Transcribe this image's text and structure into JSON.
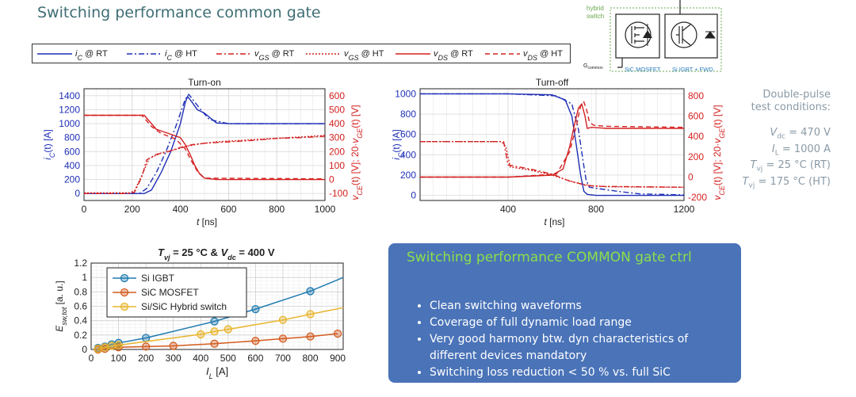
{
  "page": {
    "title": "Switching performance common gate",
    "conditions": {
      "heading": [
        "Double-pulse",
        "test conditions:"
      ],
      "lines": [
        {
          "sym": "V",
          "sub": "dc",
          "val": " = 470 V"
        },
        {
          "sym": "I",
          "sub": "L",
          "val": " = 1000 A"
        },
        {
          "sym": "T",
          "sub": "vj",
          "val": " = 25 °C (RT)"
        },
        {
          "sym": "T",
          "sub": "vj",
          "val": " = 175 °C (HT)"
        }
      ]
    },
    "callout": {
      "heading": "Switching performance COMMON gate ctrl",
      "bullets": [
        "Clean switching waveforms",
        "Coverage of full dynamic load range",
        "Very good harmony btw. dyn characteristics of different devices mandatory",
        "Switching loss reduction < 50 % vs. full SiC"
      ]
    },
    "circuit": {
      "label_hybrid": "hybrid",
      "label_switch": "switch",
      "label_gate": "G",
      "label_gate_sub": "common",
      "label_mosfet": "SiC MOSFET",
      "label_igbt": "Si IGBT + FWD"
    },
    "top_legend": [
      {
        "name": "iC @ RT",
        "sym": "i",
        "sub": "C",
        "suffix": " @ RT",
        "color": "#1f2fb5",
        "dash": ""
      },
      {
        "name": "iC @ HT",
        "sym": "i",
        "sub": "C",
        "suffix": " @ HT",
        "color": "#1f2fb5",
        "dash": "7,3,2,3"
      },
      {
        "name": "vGS @ RT",
        "sym": "v",
        "sub": "GS",
        "suffix": " @ RT",
        "color": "#d42020",
        "dash": "7,3,2,3"
      },
      {
        "name": "vGS @ HT",
        "sym": "v",
        "sub": "GS",
        "suffix": " @ HT",
        "color": "#d42020",
        "dash": "2,2"
      },
      {
        "name": "vDS @ RT",
        "sym": "v",
        "sub": "DS",
        "suffix": " @ RT",
        "color": "#d42020",
        "dash": ""
      },
      {
        "name": "vDS @ HT",
        "sym": "v",
        "sub": "DS",
        "suffix": " @ HT",
        "color": "#d42020",
        "dash": "6,4"
      }
    ]
  },
  "chart_data": [
    {
      "type": "line",
      "title": "Turn-on",
      "xlabel": "t [ns]",
      "ylabel_left": "iC(t) [A]",
      "ylabel_right": "vCE(t) [V]; 20·vGE(t) [V]",
      "xlim": [
        0,
        1000
      ],
      "xticks": [
        0,
        200,
        400,
        600,
        800,
        1000
      ],
      "ylim_left": [
        -100,
        1500
      ],
      "yticks_left": [
        0,
        200,
        400,
        600,
        800,
        1000,
        1200,
        1400
      ],
      "ylim_right": [
        -150,
        650
      ],
      "yticks_right": [
        -100,
        0,
        100,
        200,
        300,
        400,
        500,
        600
      ],
      "grid": true,
      "series": [
        {
          "name": "iC @ RT",
          "axis": "left",
          "color": "#1f2fb5",
          "dash": "",
          "x": [
            0,
            250,
            280,
            320,
            360,
            400,
            420,
            430,
            450,
            470,
            500,
            550,
            600,
            1000
          ],
          "y": [
            0,
            0,
            50,
            300,
            600,
            1000,
            1300,
            1390,
            1300,
            1200,
            1150,
            1010,
            1000,
            1000
          ]
        },
        {
          "name": "iC @ HT",
          "axis": "left",
          "color": "#1f2fb5",
          "dash": "7,3,2,3",
          "x": [
            0,
            230,
            260,
            300,
            340,
            380,
            420,
            435,
            455,
            480,
            520,
            600,
            1000
          ],
          "y": [
            0,
            0,
            70,
            300,
            600,
            950,
            1350,
            1420,
            1330,
            1220,
            1060,
            1000,
            1000
          ]
        },
        {
          "name": "vDS @ RT",
          "axis": "right",
          "color": "#d42020",
          "dash": "",
          "x": [
            0,
            250,
            300,
            350,
            400,
            420,
            440,
            460,
            480,
            500,
            550,
            1000
          ],
          "y": [
            460,
            460,
            360,
            330,
            300,
            250,
            180,
            100,
            40,
            10,
            0,
            0
          ]
        },
        {
          "name": "vDS @ HT",
          "axis": "right",
          "color": "#d42020",
          "dash": "6,4",
          "x": [
            0,
            240,
            280,
            320,
            380,
            420,
            440,
            470,
            500,
            1000
          ],
          "y": [
            460,
            460,
            380,
            330,
            290,
            220,
            150,
            60,
            10,
            5
          ]
        },
        {
          "name": "vGS @ RT",
          "axis": "right",
          "color": "#d42020",
          "dash": "7,3,2,3",
          "x": [
            0,
            190,
            210,
            240,
            260,
            300,
            350,
            400,
            450,
            500,
            600,
            700,
            800,
            900,
            1000
          ],
          "y": [
            -100,
            -100,
            -90,
            20,
            140,
            180,
            200,
            230,
            250,
            260,
            270,
            280,
            295,
            300,
            310
          ]
        },
        {
          "name": "vGS @ HT",
          "axis": "right",
          "color": "#d42020",
          "dash": "2,2",
          "x": [
            0,
            190,
            210,
            240,
            270,
            320,
            380,
            430,
            480,
            550,
            650,
            750,
            850,
            1000
          ],
          "y": [
            -95,
            -95,
            -80,
            30,
            150,
            190,
            215,
            240,
            255,
            270,
            280,
            290,
            300,
            315
          ]
        }
      ]
    },
    {
      "type": "line",
      "title": "Turn-off",
      "xlabel": "t [ns]",
      "ylabel_left": "iC(t) [A]",
      "ylabel_right": "vCE(t) [V]; 20·vGE(t) [V]",
      "xlim": [
        0,
        1200
      ],
      "xticks": [
        400,
        800,
        1200
      ],
      "ylim_left": [
        -50,
        1050
      ],
      "yticks_left": [
        0,
        200,
        400,
        600,
        800,
        1000
      ],
      "ylim_right": [
        -230,
        870
      ],
      "yticks_right": [
        -200,
        0,
        200,
        400,
        600,
        800
      ],
      "grid": true,
      "series": [
        {
          "name": "iC @ RT",
          "axis": "left",
          "color": "#1f2fb5",
          "dash": "",
          "x": [
            0,
            400,
            600,
            660,
            690,
            710,
            730,
            745,
            760,
            800,
            1200
          ],
          "y": [
            1000,
            1000,
            990,
            940,
            780,
            500,
            200,
            40,
            10,
            0,
            0
          ]
        },
        {
          "name": "iC @ HT",
          "axis": "left",
          "color": "#1f2fb5",
          "dash": "7,3,2,3",
          "x": [
            0,
            400,
            620,
            690,
            720,
            740,
            755,
            770,
            800,
            900,
            1000,
            1200
          ],
          "y": [
            1000,
            1000,
            980,
            900,
            650,
            350,
            150,
            80,
            70,
            40,
            15,
            5
          ]
        },
        {
          "name": "vDS @ RT",
          "axis": "right",
          "color": "#d42020",
          "dash": "",
          "x": [
            0,
            400,
            600,
            650,
            680,
            700,
            720,
            735,
            750,
            760,
            780,
            850,
            1200
          ],
          "y": [
            0,
            0,
            20,
            80,
            300,
            500,
            680,
            720,
            600,
            480,
            490,
            480,
            480
          ]
        },
        {
          "name": "vDS @ HT",
          "axis": "right",
          "color": "#d42020",
          "dash": "6,4",
          "x": [
            0,
            400,
            620,
            680,
            710,
            730,
            745,
            760,
            770,
            790,
            850,
            1200
          ],
          "y": [
            0,
            0,
            30,
            250,
            500,
            700,
            740,
            640,
            540,
            510,
            500,
            490
          ]
        },
        {
          "name": "vGS @ RT",
          "axis": "right",
          "color": "#d42020",
          "dash": "7,3,2,3",
          "x": [
            0,
            360,
            380,
            400,
            500,
            600,
            680,
            720,
            750,
            800,
            1200
          ],
          "y": [
            350,
            350,
            350,
            120,
            80,
            30,
            -40,
            -60,
            -80,
            -90,
            -100
          ]
        },
        {
          "name": "vGS @ HT",
          "axis": "right",
          "color": "#d42020",
          "dash": "2,2",
          "x": [
            0,
            370,
            390,
            410,
            500,
            600,
            700,
            740,
            780,
            850,
            1200
          ],
          "y": [
            350,
            350,
            300,
            100,
            70,
            20,
            -50,
            -70,
            -85,
            -95,
            -100
          ]
        }
      ]
    },
    {
      "type": "line",
      "title": "Tvj = 25 °C & Vdc = 400 V",
      "xlabel": "IL [A]",
      "ylabel": "Esw,tot [a. u.]",
      "xlim": [
        0,
        920
      ],
      "xticks": [
        0,
        100,
        200,
        300,
        400,
        500,
        600,
        700,
        800,
        900
      ],
      "ylim": [
        0,
        1.2
      ],
      "yticks": [
        0,
        0.2,
        0.4,
        0.6,
        0.8,
        1,
        1.2
      ],
      "grid": true,
      "legend": "top-left",
      "series": [
        {
          "name": "Si IGBT",
          "color": "#1f7bb0",
          "x": [
            25,
            50,
            75,
            100,
            200,
            450,
            600,
            800,
            920
          ],
          "y": [
            0.02,
            0.04,
            0.07,
            0.09,
            0.16,
            0.39,
            0.56,
            0.81,
            1.0
          ]
        },
        {
          "name": "SiC MOSFET",
          "color": "#d45b1e",
          "x": [
            25,
            50,
            75,
            100,
            200,
            300,
            450,
            600,
            700,
            800,
            900
          ],
          "y": [
            0.0,
            0.01,
            0.02,
            0.03,
            0.04,
            0.05,
            0.08,
            0.12,
            0.15,
            0.18,
            0.22
          ]
        },
        {
          "name": "Si/SiC Hybrid switch",
          "color": "#e8b52b",
          "x": [
            25,
            50,
            75,
            100,
            200,
            400,
            450,
            500,
            700,
            800,
            920
          ],
          "y": [
            0.01,
            0.03,
            0.05,
            0.06,
            0.11,
            0.21,
            0.25,
            0.28,
            0.41,
            0.49,
            0.58
          ]
        }
      ],
      "markers": [
        {
          "series": 0,
          "x": [
            25,
            50,
            75,
            100,
            200,
            450,
            600,
            800
          ]
        },
        {
          "series": 1,
          "x": [
            25,
            50,
            100,
            200,
            300,
            450,
            600,
            700,
            800,
            900
          ]
        },
        {
          "series": 2,
          "x": [
            25,
            50,
            75,
            100,
            400,
            450,
            500,
            700,
            800
          ]
        }
      ]
    }
  ]
}
